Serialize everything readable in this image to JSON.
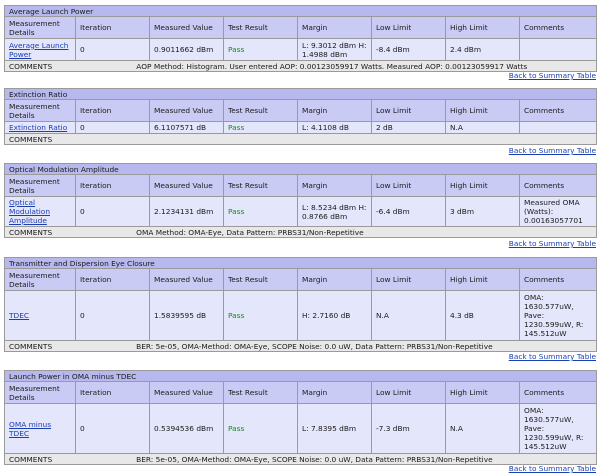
{
  "headers": {
    "details": "Measurement Details",
    "iteration": "Iteration",
    "measured": "Measured Value",
    "result": "Test Result",
    "margin": "Margin",
    "low": "Low Limit",
    "high": "High Limit",
    "comments": "Comments"
  },
  "comments_label": "COMMENTS",
  "back_link": "Back to Summary Table",
  "sections": [
    {
      "title": "Average Launch Power",
      "link": "Average Launch Power",
      "iteration": "0",
      "measured": "0.9011662 dBm",
      "result": "Pass",
      "margin": "L: 9.3012 dBm H: 1.4988 dBm",
      "low": "-8.4 dBm",
      "high": "2.4 dBm",
      "comments": "",
      "comment_text": "AOP Method: Histogram. User entered AOP: 0.00123059917 Watts. Measured AOP: 0.00123059917 Watts"
    },
    {
      "title": "Extinction Ratio",
      "link": "Extinction Ratio",
      "iteration": "0",
      "measured": "6.1107571 dB",
      "result": "Pass",
      "margin": "L: 4.1108 dB",
      "low": "2 dB",
      "high": "N.A",
      "comments": "",
      "comment_text": ""
    },
    {
      "title": "Optical Modulation Amplitude",
      "link": "Optical Modulation Amplitude",
      "iteration": "0",
      "measured": "2.1234131 dBm",
      "result": "Pass",
      "margin": "L: 8.5234 dBm H: 0.8766 dBm",
      "low": "-6.4 dBm",
      "high": "3 dBm",
      "comments": "Measured OMA (Watts): 0.00163057701",
      "comment_text": "OMA Method: OMA-Eye, Data Pattern: PRBS31/Non-Repetitive"
    },
    {
      "title": "Transmitter and Dispersion Eye Closure",
      "link": "TDEC",
      "iteration": "0",
      "measured": "1.5839595 dB",
      "result": "Pass",
      "margin": "H: 2.7160 dB",
      "low": "N.A",
      "high": "4.3 dB",
      "comments": "OMA: 1630.577uW, Pave: 1230.599uW, R: 145.512uW",
      "comment_text": "BER: 5e-05, OMA-Method: OMA-Eye, SCOPE Noise: 0.0 uW, Data Pattern: PRBS31/Non-Repetitive"
    },
    {
      "title": "Launch Power in OMA minus TDEC",
      "link": "OMA minus TDEC",
      "iteration": "0",
      "measured": "0.5394536 dBm",
      "result": "Pass",
      "margin": "L: 7.8395 dBm",
      "low": "-7.3 dBm",
      "high": "N.A",
      "comments": "OMA: 1630.577uW, Pave: 1230.599uW, R: 145.512uW",
      "comment_text": "BER: 5e-05, OMA-Method: OMA-Eye, SCOPE Noise: 0.0 uW, Data Pattern: PRBS31/Non-Repetitive"
    }
  ]
}
